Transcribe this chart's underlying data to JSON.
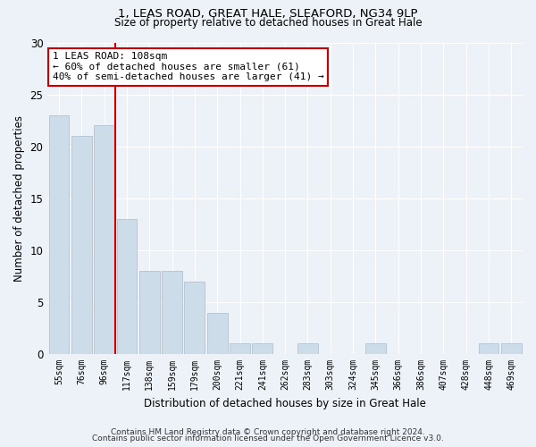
{
  "title1": "1, LEAS ROAD, GREAT HALE, SLEAFORD, NG34 9LP",
  "title2": "Size of property relative to detached houses in Great Hale",
  "xlabel": "Distribution of detached houses by size in Great Hale",
  "ylabel": "Number of detached properties",
  "categories": [
    "55sqm",
    "76sqm",
    "96sqm",
    "117sqm",
    "138sqm",
    "159sqm",
    "179sqm",
    "200sqm",
    "221sqm",
    "241sqm",
    "262sqm",
    "283sqm",
    "303sqm",
    "324sqm",
    "345sqm",
    "366sqm",
    "386sqm",
    "407sqm",
    "428sqm",
    "448sqm",
    "469sqm"
  ],
  "values": [
    23,
    21,
    22,
    13,
    8,
    8,
    7,
    4,
    1,
    1,
    0,
    1,
    0,
    0,
    1,
    0,
    0,
    0,
    0,
    1,
    1
  ],
  "bar_color": "#ccdce8",
  "bar_edge_color": "#aabbcc",
  "vline_x": 2.5,
  "vline_color": "#cc0000",
  "annotation_text": "1 LEAS ROAD: 108sqm\n← 60% of detached houses are smaller (61)\n40% of semi-detached houses are larger (41) →",
  "annotation_box_color": "#ffffff",
  "annotation_box_edge": "#cc0000",
  "ylim": [
    0,
    30
  ],
  "yticks": [
    0,
    5,
    10,
    15,
    20,
    25,
    30
  ],
  "footer1": "Contains HM Land Registry data © Crown copyright and database right 2024.",
  "footer2": "Contains public sector information licensed under the Open Government Licence v3.0.",
  "bg_color": "#edf2f8",
  "grid_color": "#ffffff"
}
